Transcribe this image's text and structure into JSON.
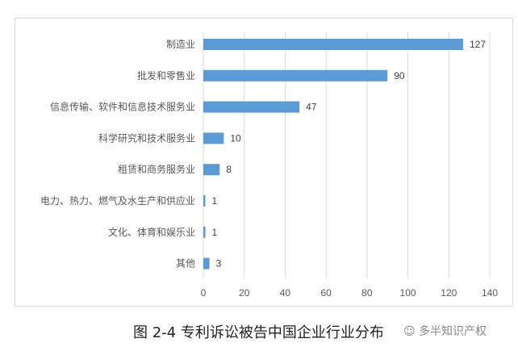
{
  "chart_data": {
    "type": "bar",
    "orientation": "horizontal",
    "title": "图 2-4 专利诉讼被告中国企业行业分布",
    "categories": [
      "制造业",
      "批发和零售业",
      "信息传输、软件和信息技术服务业",
      "科学研究和技术服务业",
      "租赁和商务服务业",
      "电力、热力、燃气及水生产和供应业",
      "文化、体育和娱乐业",
      "其他"
    ],
    "values": [
      127,
      90,
      47,
      10,
      8,
      1,
      1,
      3
    ],
    "xlim": [
      0,
      140
    ],
    "xticks": [
      0,
      20,
      40,
      60,
      80,
      100,
      120,
      140
    ],
    "xlabel": "",
    "ylabel": "",
    "grid": true,
    "bar_color": "#5b9bd5"
  },
  "watermark": "多半知识产权"
}
